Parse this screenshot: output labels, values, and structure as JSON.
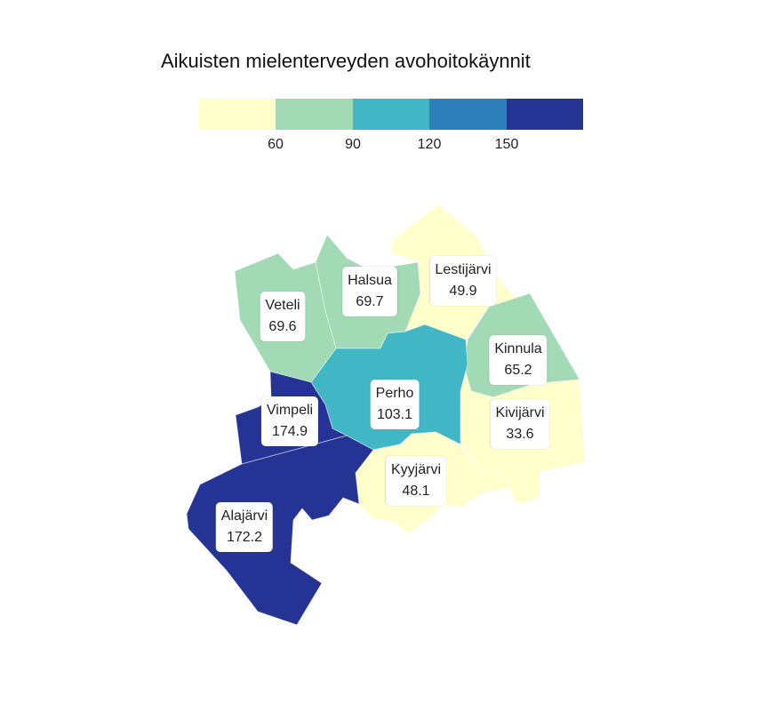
{
  "title": "Aikuisten mielenterveyden avohoitokäynnit",
  "legend": {
    "colors": [
      "#ffffcc",
      "#a1dab4",
      "#41b6c4",
      "#2c7fb8",
      "#253494"
    ],
    "ticks": [
      "60",
      "90",
      "120",
      "150"
    ]
  },
  "municipalities": [
    {
      "name": "Veteli",
      "value": "69.6",
      "color": "#a1dab4"
    },
    {
      "name": "Halsua",
      "value": "69.7",
      "color": "#a1dab4"
    },
    {
      "name": "Lestijärvi",
      "value": "49.9",
      "color": "#ffffcc"
    },
    {
      "name": "Kinnula",
      "value": "65.2",
      "color": "#a1dab4"
    },
    {
      "name": "Perho",
      "value": "103.1",
      "color": "#41b6c4"
    },
    {
      "name": "Vimpeli",
      "value": "174.9",
      "color": "#253494"
    },
    {
      "name": "Kivijärvi",
      "value": "33.6",
      "color": "#ffffcc"
    },
    {
      "name": "Kyyjärvi",
      "value": "48.1",
      "color": "#ffffcc"
    },
    {
      "name": "Alajärvi",
      "value": "172.2",
      "color": "#253494"
    }
  ]
}
